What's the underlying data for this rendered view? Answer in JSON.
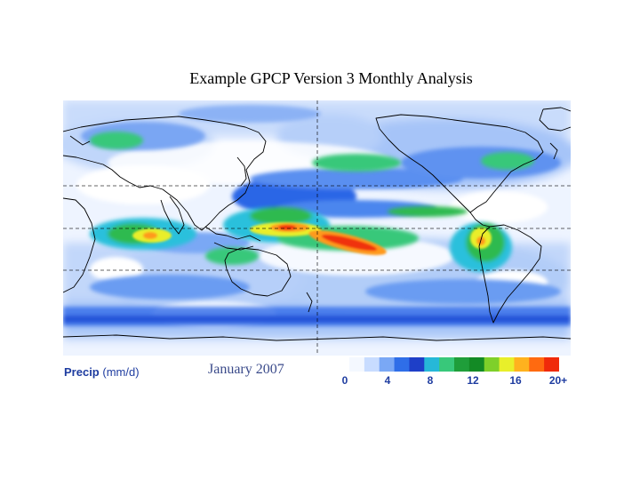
{
  "title": "Example GPCP Version 3 Monthly Analysis",
  "precip_label": "Precip",
  "precip_unit": "(mm/d)",
  "date_label": "January 2007",
  "colorbar": {
    "ticks": [
      "0",
      "4",
      "8",
      "12",
      "16",
      "20+"
    ],
    "colors": [
      "#f4f8ff",
      "#c8dcff",
      "#7aa8f5",
      "#2f6ee8",
      "#1e3fc8",
      "#26b8d8",
      "#38c87a",
      "#1f9e3a",
      "#138a25",
      "#7ed02a",
      "#e8ef2a",
      "#ffb21e",
      "#ff6a10",
      "#f02a0a"
    ]
  },
  "palette": {
    "ocean_base": "#cfe0fb",
    "land_dry": "#ffffff",
    "light_blue": "#9fc0f6",
    "mid_blue": "#4c86ee",
    "dark_blue": "#1f4fd6",
    "cyan": "#2cc0dc",
    "green": "#2fba4f",
    "dark_green": "#168c2a",
    "yellow": "#e9ee2c",
    "orange": "#ff9a1e",
    "red": "#f0320c",
    "coastline": "#000000"
  }
}
